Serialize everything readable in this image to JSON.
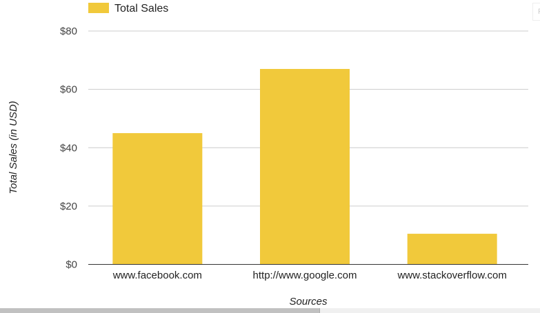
{
  "chart_data": {
    "type": "bar",
    "categories": [
      "www.facebook.com",
      "http://www.google.com",
      "www.stackoverflow.com"
    ],
    "series": [
      {
        "name": "Total Sales",
        "values": [
          45,
          67,
          10.5
        ],
        "color": "#f1c93b"
      }
    ],
    "xlabel": "Sources",
    "ylabel": "Total Sales (in USD)",
    "ylim": [
      0,
      80
    ],
    "yticks": [
      0,
      20,
      40,
      60,
      80
    ],
    "ytick_labels": [
      "$0",
      "$20",
      "$40",
      "$60",
      "$80"
    ],
    "grid": true,
    "legend": "top-left"
  },
  "clipped_label": "F"
}
